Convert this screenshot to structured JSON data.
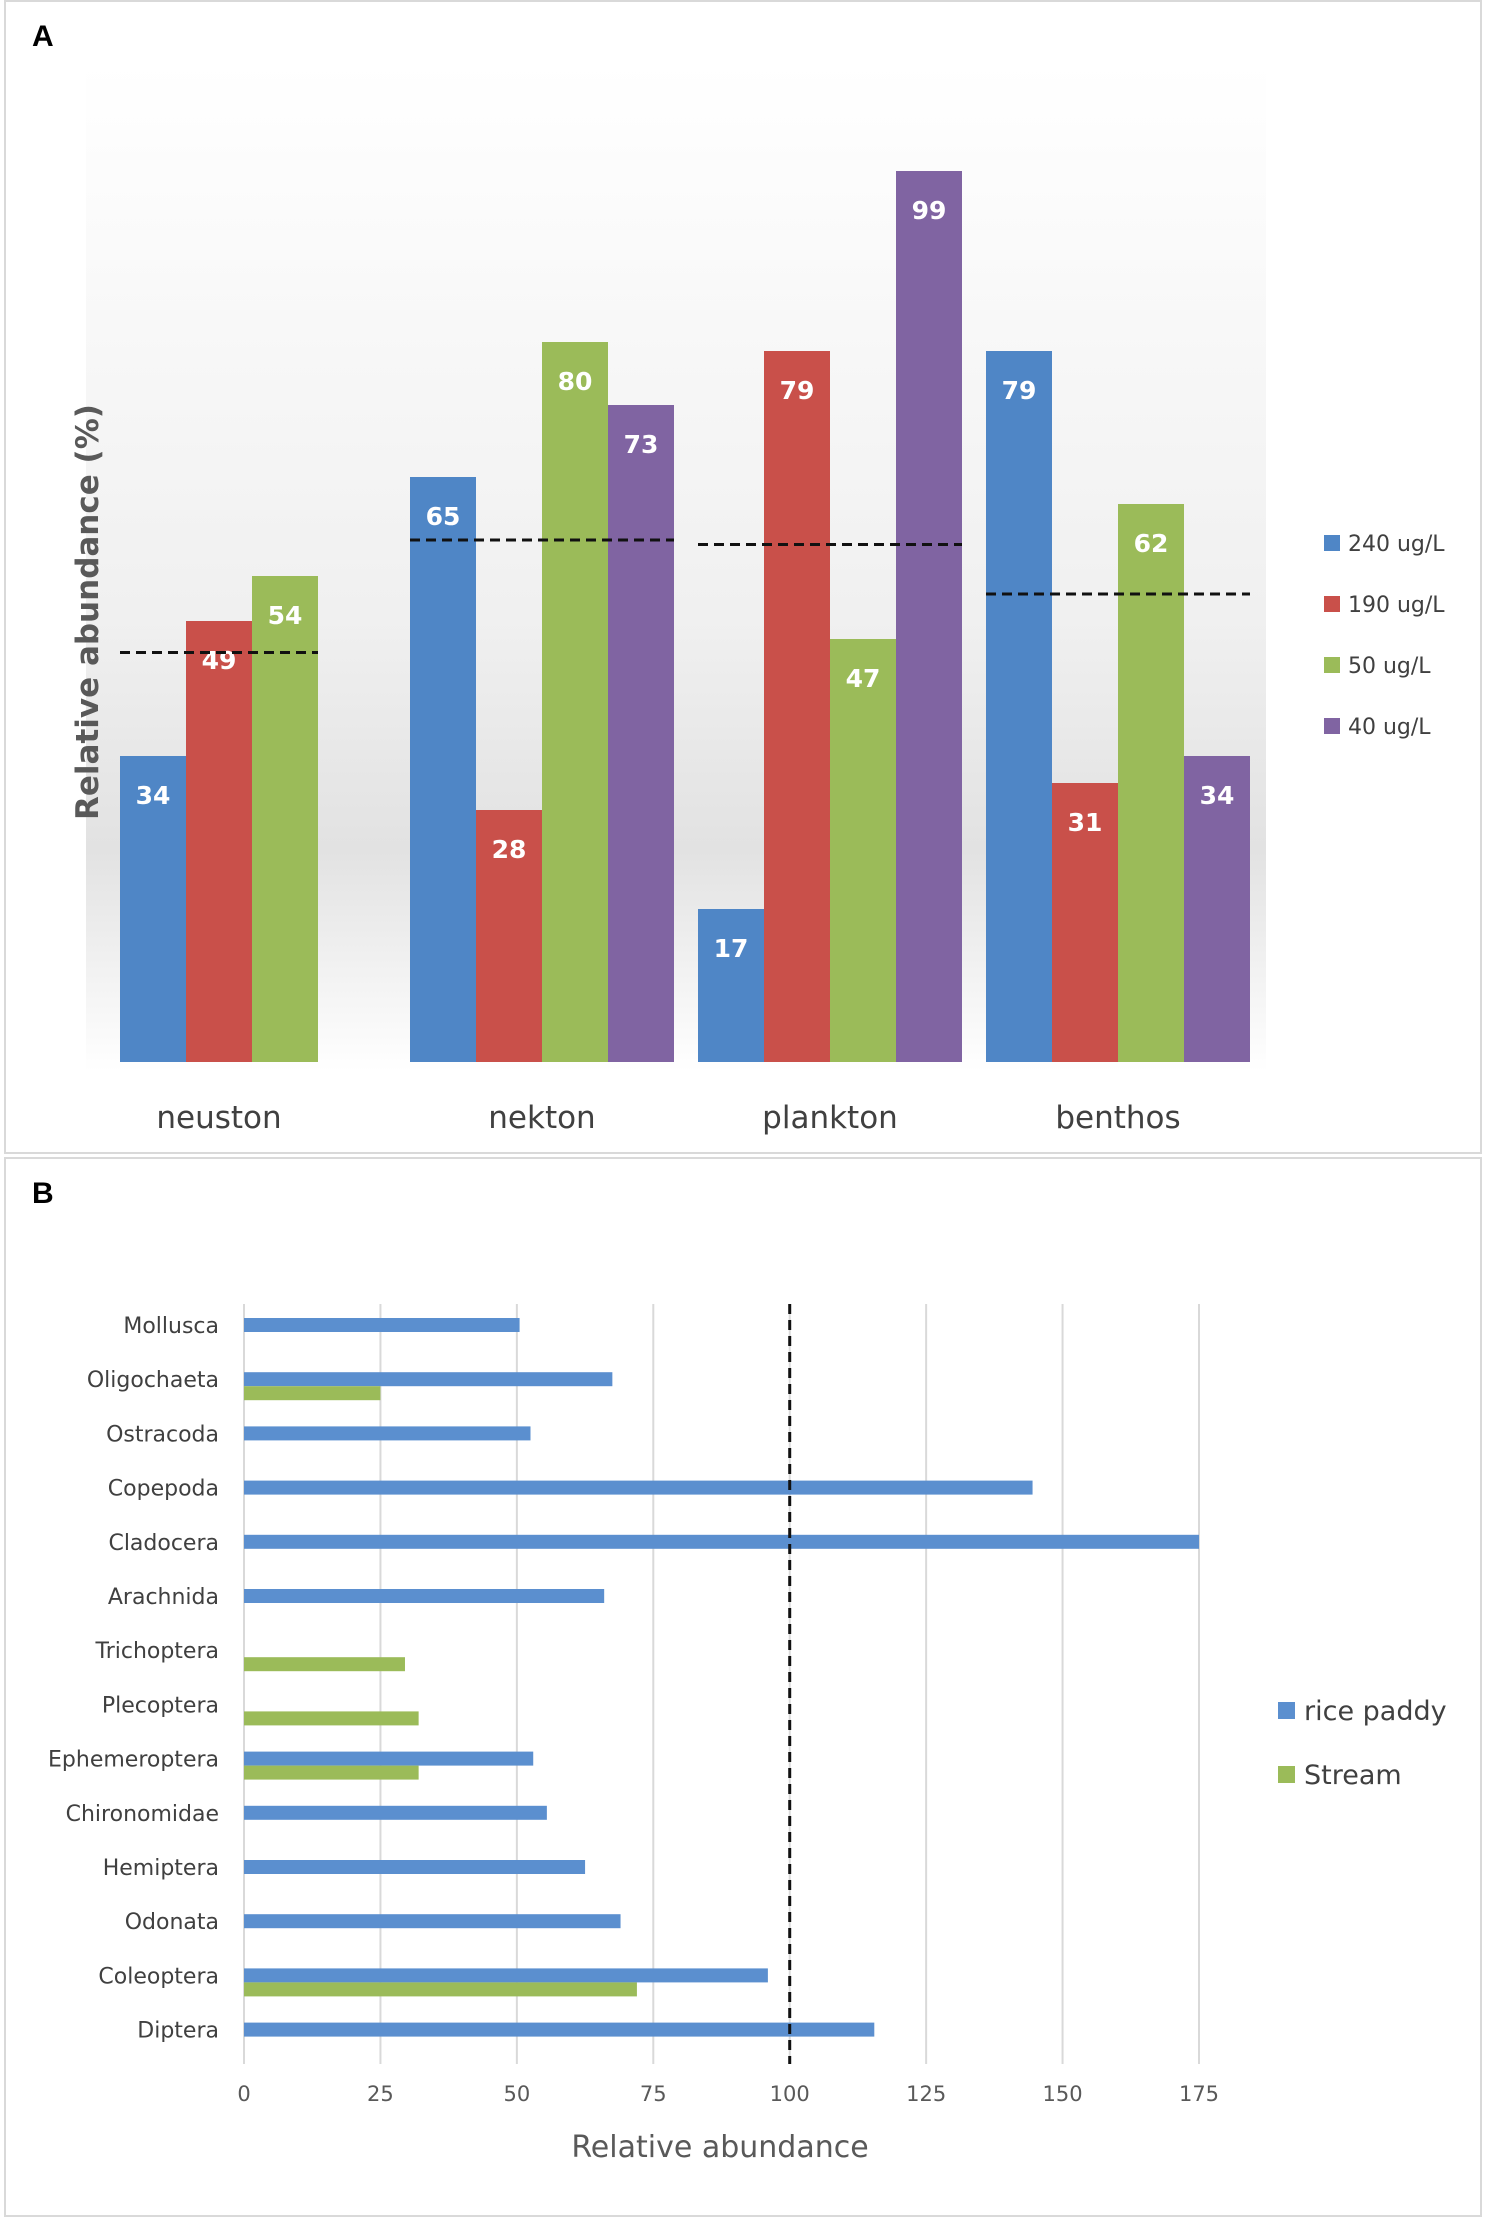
{
  "panels": {
    "a_label": "A",
    "b_label": "B"
  },
  "chart_data": [
    {
      "type": "bar",
      "title": "",
      "xlabel": "",
      "ylabel": "Relative abundance (%)",
      "ylim": [
        0,
        100
      ],
      "categories": [
        "neuston",
        "nekton",
        "plankton",
        "benthos"
      ],
      "series": [
        {
          "name": "240 ug/L",
          "color": "#4f86c6",
          "values": [
            34,
            65,
            17,
            79
          ]
        },
        {
          "name": "190 ug/L",
          "color": "#c9504a",
          "values": [
            49,
            28,
            79,
            31
          ]
        },
        {
          "name": "50 ug/L",
          "color": "#9bbb59",
          "values": [
            54,
            80,
            47,
            62
          ]
        },
        {
          "name": "40 ug/L",
          "color": "#8064a2",
          "values": [
            null,
            73,
            99,
            34
          ]
        }
      ],
      "reference_lines": [
        45.5,
        58,
        57.5,
        52
      ],
      "legend": "right"
    },
    {
      "type": "bar",
      "orientation": "horizontal",
      "title": "",
      "xlabel": "Relative abundance",
      "ylabel": "",
      "xlim": [
        0,
        175
      ],
      "xticks": [
        0,
        25,
        50,
        75,
        100,
        125,
        150,
        175
      ],
      "categories": [
        "Mollusca",
        "Oligochaeta",
        "Ostracoda",
        "Copepoda",
        "Cladocera",
        "Arachnida",
        "Trichoptera",
        "Plecoptera",
        "Ephemeroptera",
        "Chironomidae",
        "Hemiptera",
        "Odonata",
        "Coleoptera",
        "Diptera"
      ],
      "series": [
        {
          "name": "rice paddy",
          "color": "#5b8fcf",
          "values": [
            50.5,
            67.5,
            52.5,
            144.5,
            175,
            66,
            null,
            null,
            53,
            55.5,
            62.5,
            69,
            96,
            115.5
          ]
        },
        {
          "name": "Stream",
          "color": "#9bbb59",
          "values": [
            null,
            25,
            null,
            null,
            null,
            null,
            29.5,
            32,
            32,
            null,
            null,
            null,
            72,
            null
          ]
        }
      ],
      "reference_line": 100,
      "grid": true,
      "legend": "right"
    }
  ]
}
